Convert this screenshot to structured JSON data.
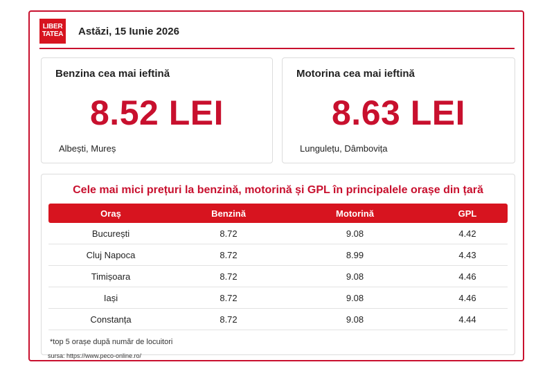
{
  "header": {
    "logo_line1": "LIBER",
    "logo_line2": "TATEA",
    "date": "Astăzi, 15 Iunie 2026"
  },
  "cards": {
    "benzina": {
      "title": "Benzina cea mai ieftină",
      "price": "8.52 LEI",
      "location": "Albești, Mureș"
    },
    "motorina": {
      "title": "Motorina cea mai ieftină",
      "price": "8.63 LEI",
      "location": "Lungulețu, Dâmbovița"
    }
  },
  "table": {
    "title": "Cele mai mici prețuri la benzină, motorină și GPL în principalele orașe din țară",
    "columns": [
      "Oraș",
      "Benzină",
      "Motorină",
      "GPL"
    ],
    "rows": [
      [
        "București",
        "8.72",
        "9.08",
        "4.42"
      ],
      [
        "Cluj Napoca",
        "8.72",
        "8.99",
        "4.43"
      ],
      [
        "Timișoara",
        "8.72",
        "9.08",
        "4.46"
      ],
      [
        "Iași",
        "8.72",
        "9.08",
        "4.46"
      ],
      [
        "Constanța",
        "8.72",
        "9.08",
        "4.44"
      ]
    ],
    "note": "*top 5 orașe după număr de locuitori"
  },
  "source": "sursa: https://www.peco-online.ro/",
  "colors": {
    "accent": "#c8102e",
    "header_bg": "#d7141f"
  }
}
